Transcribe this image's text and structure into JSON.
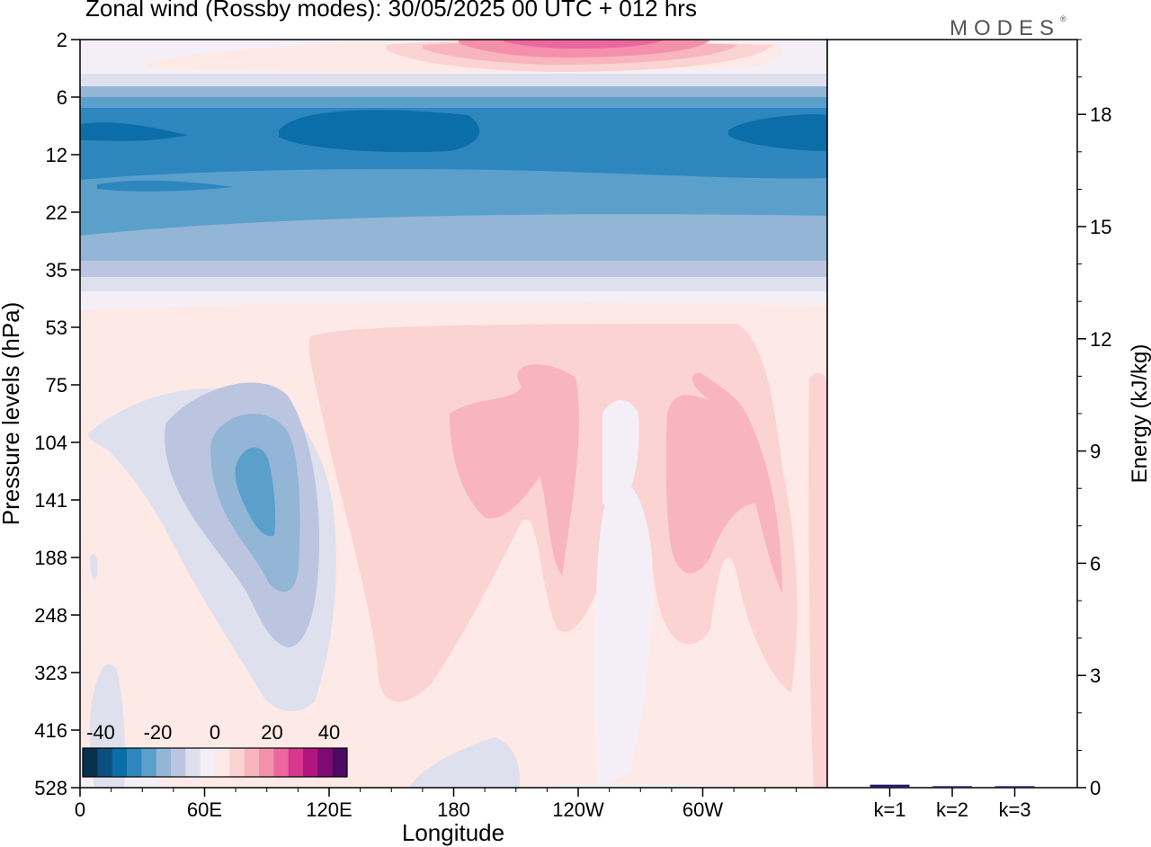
{
  "header": {
    "title": "Zonal wind (Rossby modes):  30/05/2025  00 UTC  + 012 hrs",
    "logo": "MODES",
    "logo_mark": "®"
  },
  "chart_data": [
    {
      "type": "heatmap",
      "title": "Zonal wind (Rossby modes):  30/05/2025  00 UTC  + 012 hrs",
      "xlabel": "Longitude",
      "ylabel": "Pressure levels (hPa)",
      "x_ticks": [
        "0",
        "60E",
        "120E",
        "180",
        "120W",
        "60W"
      ],
      "y_ticks": [
        "2",
        "6",
        "12",
        "22",
        "35",
        "53",
        "75",
        "104",
        "141",
        "188",
        "248",
        "323",
        "416",
        "528"
      ],
      "y_scale": "log (reversed)",
      "colorbar": {
        "labels": [
          "-40",
          "-20",
          "0",
          "20",
          "40"
        ],
        "levels": [
          -45,
          -40,
          -35,
          -30,
          -25,
          -20,
          -15,
          -10,
          -5,
          0,
          5,
          10,
          15,
          20,
          25,
          30,
          35,
          40,
          45
        ],
        "colors": [
          "#08304f",
          "#0b4f7f",
          "#0b6ea8",
          "#2e86bf",
          "#5aa0cb",
          "#93b5d6",
          "#bcc5df",
          "#dfe0ee",
          "#f4eff6",
          "#fde9e6",
          "#fbd3d3",
          "#f8b5bd",
          "#f590ab",
          "#ec669f",
          "#d8378e",
          "#b11580",
          "#7f0a74",
          "#4e0a63"
        ]
      }
    },
    {
      "type": "bar",
      "ylabel": "Energy (kJ/kg)",
      "categories": [
        "k=1",
        "k=2",
        "k=3"
      ],
      "values": [
        0.08,
        0.04,
        0.04
      ],
      "ylim": [
        0,
        20
      ],
      "y_ticks": [
        "0",
        "3",
        "6",
        "9",
        "12",
        "15",
        "18"
      ],
      "bar_color": "#2a1a66"
    }
  ]
}
